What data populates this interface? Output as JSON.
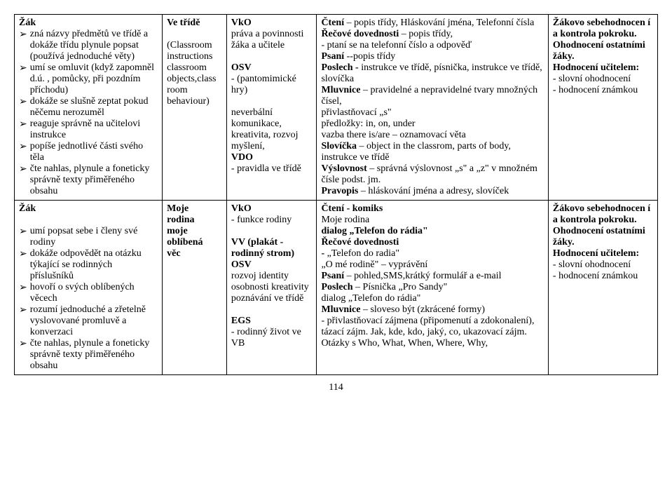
{
  "page_number": "114",
  "bullet_glyph": "➢",
  "row1": {
    "col1": {
      "title": "Žák",
      "bullets": [
        "zná názvy předmětů ve třídě a dokáže třídu plynule popsat (používá jednoduché věty)",
        "umí se omluvit (když zapomněl d.ú. , pomůcky, při pozdním příchodu)",
        "dokáže se slušně zeptat pokud něčemu nerozuměl",
        "reaguje správně na učitelovi instrukce",
        "popíše jednotlivé části svého těla",
        "čte nahlas, plynule a foneticky správně texty přiměřeného obsahu"
      ]
    },
    "col2": {
      "title": "Ve třídě",
      "plain": [
        "(Classroom instructions classroom objects,class room behaviour)"
      ]
    },
    "col3": {
      "sections": [
        {
          "bold": "VkO",
          "plain": "práva a povinnosti žáka a učitele"
        },
        {
          "bold": "OSV",
          "plain": "- (pantomimické hry)"
        },
        {
          "bold": "",
          "plain": "neverbální komunikace, kreativita, rozvoj myšlení,"
        },
        {
          "bold": "VDO",
          "plain": "- pravidla ve třídě"
        }
      ]
    },
    "col4": {
      "lines": [
        {
          "b": "Čtení",
          "t": " – popis třídy, Hláskování jména, Telefonní čísla"
        },
        {
          "b": "Řečové dovednosti",
          "t": " – popis třídy,"
        },
        {
          "b": "",
          "t": "- ptaní se na telefonní číslo a odpověď"
        },
        {
          "b": "Psaní ",
          "t": "--popis třídy"
        },
        {
          "b": "Poslech - ",
          "t": "instrukce ve třídě, písnička, instrukce ve třídě, slovíčka"
        },
        {
          "b": "Mluvnice",
          "t": " – pravidelné a nepravidelné tvary množných čísel,"
        },
        {
          "b": "",
          "t": "přivlastňovací „s\""
        },
        {
          "b": "",
          "t": "předložky: in, on, under"
        },
        {
          "b": "",
          "t": "vazba there is/are – oznamovací věta"
        },
        {
          "b": "Slovíčka",
          "t": " – object in the classrom, parts of body, instrukce ve třídě"
        },
        {
          "b": "Výslovnost",
          "t": " – správná výslovnost „s\" a „z\" v množném čísle podst. jm."
        },
        {
          "b": "Pravopis",
          "t": " – hláskování jména a adresy, slovíček"
        }
      ]
    },
    "col5": {
      "lines": [
        {
          "b": "Žákovo sebehodnocen í a kontrola pokroku.",
          "t": ""
        },
        {
          "b": "Ohodnocení ostatními žáky.",
          "t": ""
        },
        {
          "b": "Hodnocení učitelem:",
          "t": ""
        },
        {
          "b": "",
          "t": "- slovní ohodnocení"
        },
        {
          "b": "",
          "t": "- hodnocení známkou"
        }
      ]
    }
  },
  "row2": {
    "col1": {
      "title": "Žák",
      "bullets": [
        "umí popsat sebe i členy své rodiny",
        "dokáže odpovědět na otázku týkající se rodinných příslušníků",
        "hovoří o svých oblíbených věcech",
        "rozumí jednoduché a zřetelně vyslovované promluvě a konverzaci",
        "čte nahlas, plynule a foneticky správně texty přiměřeného obsahu"
      ]
    },
    "col2": {
      "lines": [
        "Moje",
        "rodina",
        "moje",
        "oblíbená",
        "věc"
      ]
    },
    "col3": {
      "sections": [
        {
          "bold": "VkO",
          "plain": "- funkce rodiny"
        },
        {
          "bold": "VV (plakát - rodinný strom)",
          "plain": ""
        },
        {
          "bold": "OSV",
          "plain": "rozvoj identity osobnosti kreativity poznávání ve třídě"
        },
        {
          "bold": "EGS",
          "plain": "- rodinný život ve VB"
        }
      ]
    },
    "col4": {
      "lines": [
        {
          "b": "Čtení - komiks",
          "t": ""
        },
        {
          "b": "",
          "t": "Moje rodina"
        },
        {
          "b": "dialog „Telefon do rádia\"",
          "t": ""
        },
        {
          "b": "Řečové dovednosti",
          "t": ""
        },
        {
          "b": " - ",
          "t": "„Telefon do radia\""
        },
        {
          "b": "",
          "t": "„O mé rodině\" – vyprávění"
        },
        {
          "b": "Psaní",
          "t": " – pohled,SMS,krátký formulář a e-mail"
        },
        {
          "b": "Poslech",
          "t": " – Písnička „Pro Sandy\""
        },
        {
          "b": "",
          "t": "dialog „Telefon do rádia\""
        },
        {
          "b": "Mluvnice",
          "t": " – sloveso být (zkrácené formy)"
        },
        {
          "b": "",
          "t": "- přivlastňovací zájmena (připomenutí a zdokonalení), tázací zájm. Jak, kde, kdo, jaký, co, ukazovací zájm."
        },
        {
          "b": "",
          "t": "Otázky s Who, What, When, Where, Why,"
        }
      ]
    },
    "col5": {
      "lines": [
        {
          "b": "Žákovo sebehodnocen í a kontrola pokroku.",
          "t": ""
        },
        {
          "b": "Ohodnocení ostatními žáky.",
          "t": ""
        },
        {
          "b": "Hodnocení učitelem:",
          "t": ""
        },
        {
          "b": "",
          "t": "- slovní ohodnocení"
        },
        {
          "b": "",
          "t": "- hodnocení známkou"
        }
      ]
    }
  }
}
